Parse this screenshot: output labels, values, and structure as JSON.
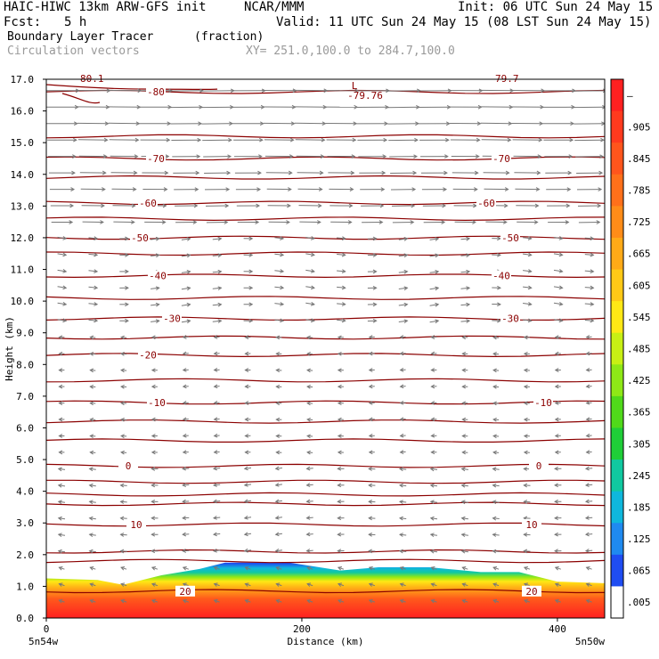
{
  "header": {
    "model": "HAIC-HIWC 13km ARW-GFS init",
    "org": "NCAR/MMM",
    "init": "Init: 06 UTC Sun 24 May 15",
    "fcst_label": "Fcst:",
    "fcst_value": "5 h",
    "valid": "Valid: 11 UTC Sun 24 May 15 (08 LST Sun 24 May 15)",
    "field": "Boundary Layer Tracer",
    "units": "(fraction)",
    "vectors": "Circulation vectors",
    "xy": "XY= 251.0,100.0 to 284.7,100.0"
  },
  "chart_data": {
    "type": "heatmap",
    "xlabel": "Distance (km)",
    "ylabel": "Height (km)",
    "xlim": [
      0,
      437
    ],
    "ylim": [
      0,
      17
    ],
    "x_ticks": [
      "0",
      "200",
      "400"
    ],
    "x_end_labels": [
      "5n54w",
      "5n50w"
    ],
    "y_ticks": [
      "0.0",
      "1.0",
      "2.0",
      "3.0",
      "4.0",
      "5.0",
      "6.0",
      "7.0",
      "8.0",
      "9.0",
      "10.0",
      "11.0",
      "12.0",
      "13.0",
      "14.0",
      "15.0",
      "16.0",
      "17.0"
    ],
    "colorbar_labels": [
      "–",
      ".905",
      ".845",
      ".785",
      ".725",
      ".665",
      ".605",
      ".545",
      ".485",
      ".425",
      ".365",
      ".305",
      ".245",
      ".185",
      ".125",
      ".065",
      ".005"
    ],
    "colorbar_colors": [
      "#ff2020",
      "#ff3a1e",
      "#ff551c",
      "#ff701a",
      "#ff8c18",
      "#ffaa17",
      "#ffc916",
      "#ffe815",
      "#c8f014",
      "#8ee816",
      "#50d91a",
      "#1fce38",
      "#10c9a0",
      "#0fb7dc",
      "#1f8af0",
      "#1f4df2",
      "#ffffff"
    ],
    "tracer_top_km": [
      [
        0,
        1.25
      ],
      [
        40,
        1.2
      ],
      [
        60,
        1.05
      ],
      [
        90,
        1.35
      ],
      [
        120,
        1.55
      ],
      [
        140,
        1.75
      ],
      [
        190,
        1.75
      ],
      [
        230,
        1.5
      ],
      [
        260,
        1.6
      ],
      [
        300,
        1.6
      ],
      [
        340,
        1.45
      ],
      [
        370,
        1.45
      ],
      [
        400,
        1.15
      ],
      [
        437,
        1.1
      ]
    ],
    "contours": [
      {
        "label": "-80",
        "y": 16.6
      },
      {
        "label": "-70",
        "y": 14.5
      },
      {
        "label": "-60",
        "y": 13.1
      },
      {
        "label": "-50",
        "y": 12.0
      },
      {
        "label": "-40",
        "y": 10.8
      },
      {
        "label": "-30",
        "y": 9.45
      },
      {
        "label": "-20",
        "y": 8.3
      },
      {
        "label": "-10",
        "y": 6.8
      },
      {
        "label": "0",
        "y": 4.8
      },
      {
        "label": "10",
        "y": 2.95
      },
      {
        "label": "20",
        "y": 0.85
      }
    ],
    "extra_lines_km": [
      15.2,
      13.9,
      12.6,
      11.5,
      10.1,
      8.85,
      7.5,
      6.2,
      5.6,
      4.3,
      3.9,
      3.6,
      2.1,
      1.8
    ],
    "min_label": "L",
    "min_value": "-79.76",
    "partial_top_labels": [
      "-80.1",
      "-79.7"
    ],
    "colors": {
      "contour": "#8b0000",
      "vector": "#777777"
    }
  }
}
